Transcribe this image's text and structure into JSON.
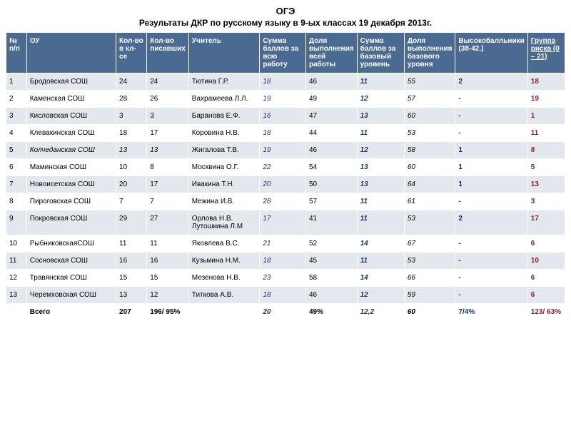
{
  "header": {
    "title": "ОГЭ",
    "subtitle": "Результаты ДКР по русскому языку в 9-ых классах  19 декабря 2013г."
  },
  "columns": [
    "№ п/п",
    "ОУ",
    "Кол-во в кл-се",
    "Кол-во писавших",
    "Учитель",
    "Сумма баллов за всю работу",
    "Доля выполнения всей работы",
    "Сумма баллов за базовый уровень",
    "Доля выполнения базового уровня",
    "Высокобалльники (38-42.)",
    "Группа риска (0 – 21)"
  ],
  "rows": [
    {
      "n": "1",
      "school": "Бродовская   СОШ",
      "kls": "24",
      "pis": "24",
      "teacher": "Тютина Г.Р.",
      "sum": "18",
      "dolya": "46",
      "sumB": "11",
      "dolyaB": "55",
      "high": "2",
      "risk": "18"
    },
    {
      "n": "2",
      "school": "Каменская СОШ",
      "kls": "28",
      "pis": "26",
      "teacher": "Вахрамеева Л.Л.",
      "sum": "19",
      "dolya": "49",
      "sumB": "12",
      "dolyaB": "57",
      "high": "-",
      "risk": "19"
    },
    {
      "n": "3",
      "school": "Кисловская СОШ",
      "kls": "3",
      "pis": "3",
      "teacher": "Баранова Е.Ф.",
      "sum": "16",
      "dolya": "47",
      "sumB": "13",
      "dolyaB": "60",
      "high": "-",
      "risk": "1"
    },
    {
      "n": "4",
      "school": "Клевакинская СОШ",
      "kls": "18",
      "pis": "17",
      "teacher": "Коровина Н.В.",
      "sum": "18",
      "dolya": "44",
      "sumB": "11",
      "dolyaB": "53",
      "high": "-",
      "risk": "11"
    },
    {
      "n": "5",
      "school": "Колчеданская СОШ",
      "kls": "13",
      "pis": "13",
      "teacher": "Жигалова Т.В.",
      "sum": "19",
      "dolya": "46",
      "sumB": "12",
      "dolyaB": "58",
      "high": "1",
      "risk": "8",
      "italicCols": true
    },
    {
      "n": "6",
      "school": "Маминская СОШ",
      "kls": "10",
      "pis": "8",
      "teacher": "Москвина О.Г.",
      "sum": "22",
      "dolya": "54",
      "sumB": "13",
      "dolyaB": "60",
      "high": "1",
      "risk": "5"
    },
    {
      "n": "7",
      "school": "Новоисетская СОШ",
      "kls": "20",
      "pis": "17",
      "teacher": "Ивакина Т.Н.",
      "sum": "20",
      "dolya": "50",
      "sumB": "13",
      "dolyaB": "64",
      "high": "1",
      "risk": "13"
    },
    {
      "n": "8",
      "school": "Пироговская СОШ",
      "kls": "7",
      "pis": "7",
      "teacher": "Межина И.В.",
      "sum": "28",
      "dolya": "57",
      "sumB": "11",
      "dolyaB": "61",
      "high": "-",
      "risk": "3"
    },
    {
      "n": "9",
      "school": "Покровская СОШ",
      "kls": "29",
      "pis": "27",
      "teacher": "Орлова Н.В. Лутошкина Л.М",
      "sum": "17",
      "dolya": "41",
      "sumB": "11",
      "dolyaB": "53",
      "high": "2",
      "risk": "17"
    },
    {
      "n": "10",
      "school": "РыбниковскаяСОШ",
      "kls": "11",
      "pis": "11",
      "teacher": "Яковлева В.С.",
      "sum": "21",
      "dolya": "52",
      "sumB": "14",
      "dolyaB": "67",
      "high": "-",
      "risk": "6"
    },
    {
      "n": "11",
      "school": "Сосновская СОШ",
      "kls": "16",
      "pis": "16",
      "teacher": "Кузьмина Н.М.",
      "sum": "18",
      "dolya": "45",
      "sumB": "11",
      "dolyaB": "53",
      "high": "-",
      "risk": "10"
    },
    {
      "n": "12",
      "school": "Травянская СОШ",
      "kls": "15",
      "pis": "15",
      "teacher": "Мезенова Н.В.",
      "sum": "23",
      "dolya": "58",
      "sumB": "14",
      "dolyaB": "66",
      "high": "-",
      "risk": "6"
    },
    {
      "n": "13",
      "school": "Черемховская СОШ",
      "kls": "13",
      "pis": "12",
      "teacher": "Титкова А.В.",
      "sum": "18",
      "dolya": "46",
      "sumB": "12",
      "dolyaB": "59",
      "high": "-",
      "risk": "6"
    }
  ],
  "total": {
    "label": "Всего",
    "kls": "207",
    "pis": "196/ 95%",
    "teacher": "",
    "sum": "20",
    "dolya": "49%",
    "sumB": "12,2",
    "dolyaB": "60",
    "high": "7/4%",
    "risk": "123/ 63%"
  },
  "style": {
    "header_bg": "#4a6a92",
    "header_fg": "#ffffff",
    "row_odd_bg": "#e3e8ef",
    "row_even_bg": "#ffffff",
    "sum_color": "#3d2a6d",
    "high_color": "#0b2f6b",
    "risk_color": "#8b2030",
    "sumB_color": "#24375f",
    "col_widths": [
      "4%",
      "17%",
      "6%",
      "7%",
      "14%",
      "9%",
      "9%",
      "9%",
      "9%",
      "9%",
      "9%"
    ]
  }
}
